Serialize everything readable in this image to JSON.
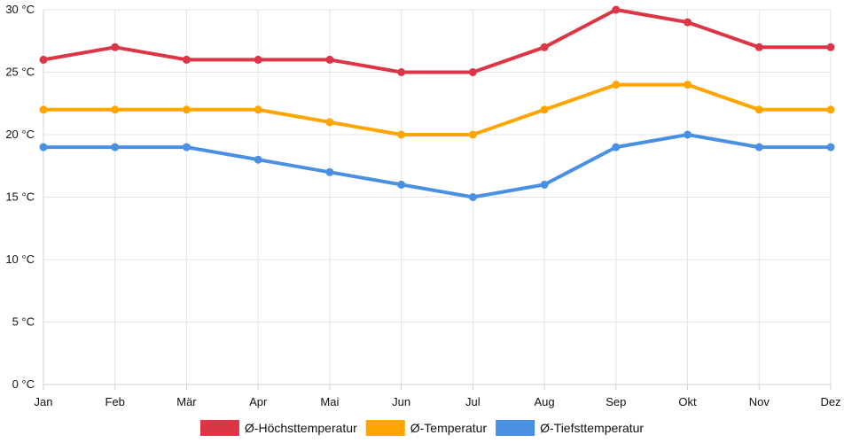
{
  "chart_data": {
    "type": "line",
    "categories": [
      "Jan",
      "Feb",
      "Mär",
      "Apr",
      "Mai",
      "Jun",
      "Jul",
      "Aug",
      "Sep",
      "Okt",
      "Nov",
      "Dez"
    ],
    "y_ticks": [
      "0 °C",
      "5 °C",
      "10 °C",
      "15 °C",
      "20 °C",
      "25 °C",
      "30 °C"
    ],
    "ylim": [
      0,
      30
    ],
    "grid": true,
    "legend_position": "bottom",
    "series": [
      {
        "name": "Ø-Höchsttemperatur",
        "color": "#dc3545",
        "values": [
          26,
          27,
          26,
          26,
          26,
          25,
          25,
          27,
          30,
          29,
          27,
          27
        ]
      },
      {
        "name": "Ø-Temperatur",
        "color": "#ffa500",
        "values": [
          22,
          22,
          22,
          22,
          21,
          20,
          20,
          22,
          24,
          24,
          22,
          22
        ]
      },
      {
        "name": "Ø-Tiefsttemperatur",
        "color": "#4a90e2",
        "values": [
          19,
          19,
          19,
          18,
          17,
          16,
          15,
          16,
          19,
          20,
          19,
          19
        ]
      }
    ]
  }
}
